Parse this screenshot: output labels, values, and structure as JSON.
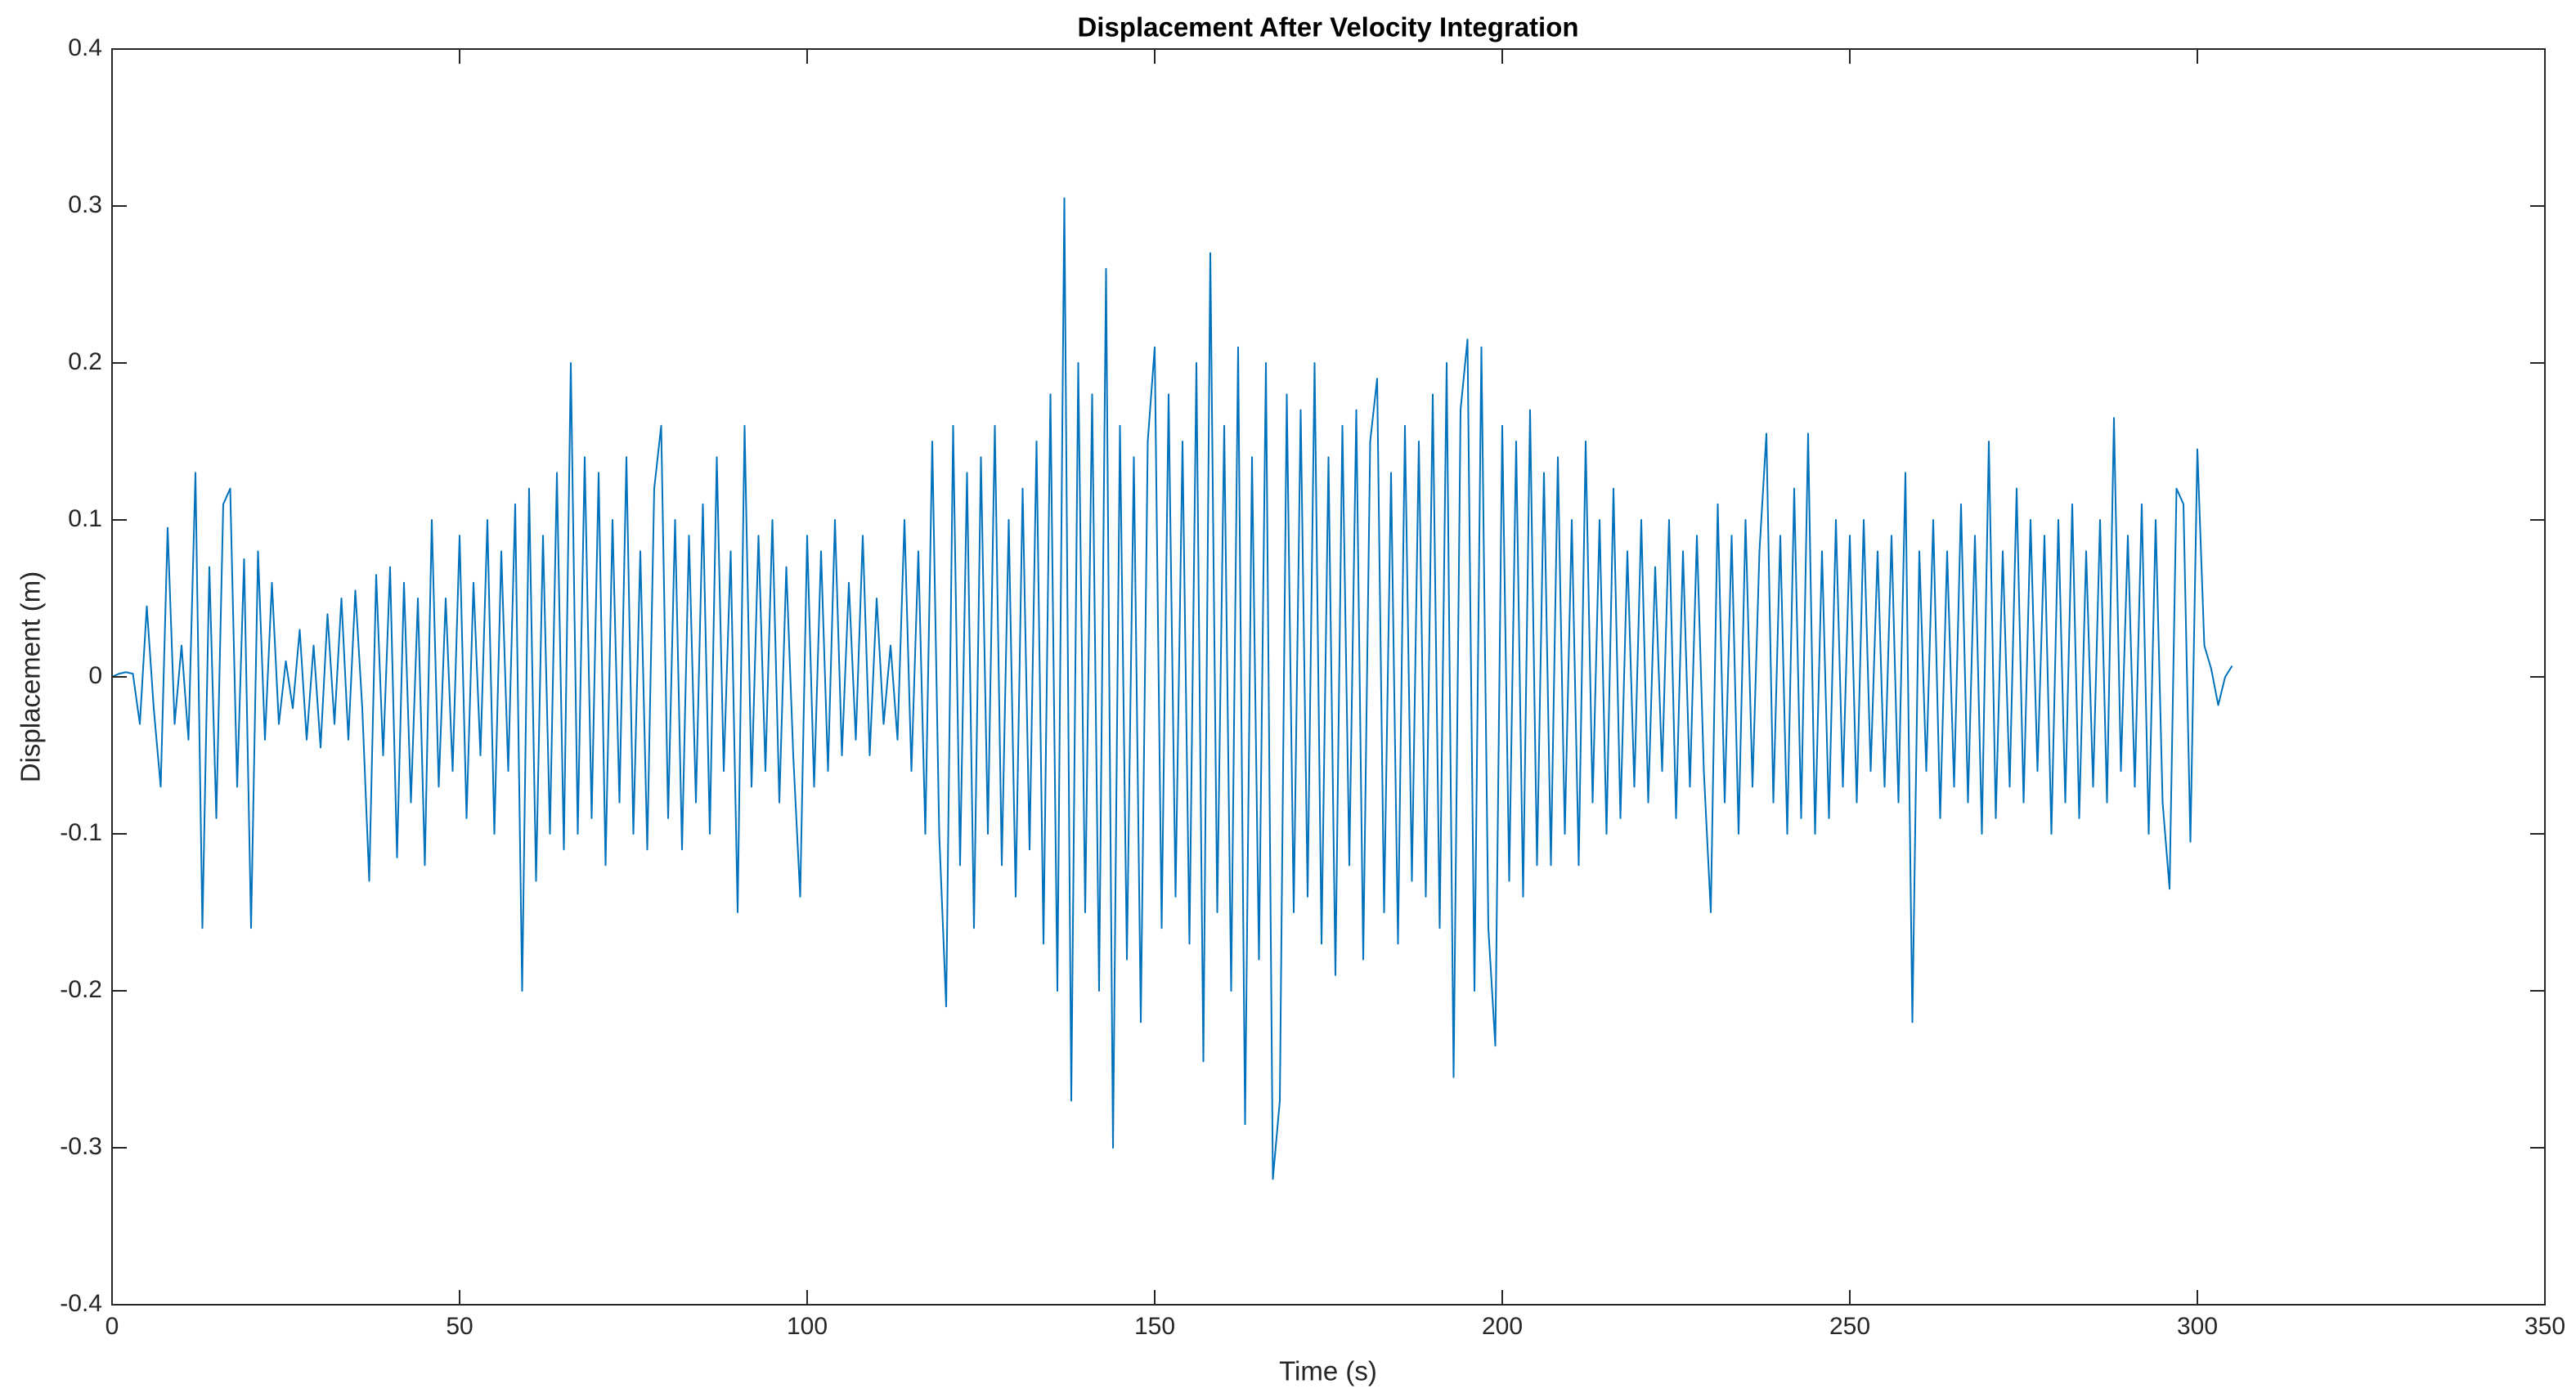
{
  "chart_data": {
    "type": "line",
    "title": "Displacement After Velocity Integration",
    "x_label": "Time (s)",
    "y_label": "Displacement (m)",
    "xlim": [
      0,
      350
    ],
    "ylim": [
      -0.4,
      0.4
    ],
    "xticks": [
      0,
      50,
      100,
      150,
      200,
      250,
      300,
      350
    ],
    "yticks": [
      -0.4,
      -0.3,
      -0.2,
      -0.1,
      0,
      0.1,
      0.2,
      0.3,
      0.4
    ],
    "grid": false,
    "x": [
      0,
      1,
      2,
      3,
      4,
      5,
      6,
      7,
      8,
      9,
      10,
      11,
      12,
      13,
      14,
      15,
      16,
      17,
      18,
      19,
      20,
      21,
      22,
      23,
      24,
      25,
      26,
      27,
      28,
      29,
      30,
      31,
      32,
      33,
      34,
      35,
      36,
      37,
      38,
      39,
      40,
      41,
      42,
      43,
      44,
      45,
      46,
      47,
      48,
      49,
      50,
      51,
      52,
      53,
      54,
      55,
      56,
      57,
      58,
      59,
      60,
      61,
      62,
      63,
      64,
      65,
      66,
      67,
      68,
      69,
      70,
      71,
      72,
      73,
      74,
      75,
      76,
      77,
      78,
      79,
      80,
      81,
      82,
      83,
      84,
      85,
      86,
      87,
      88,
      89,
      90,
      91,
      92,
      93,
      94,
      95,
      96,
      97,
      98,
      99,
      100,
      101,
      102,
      103,
      104,
      105,
      106,
      107,
      108,
      109,
      110,
      111,
      112,
      113,
      114,
      115,
      116,
      117,
      118,
      119,
      120,
      121,
      122,
      123,
      124,
      125,
      126,
      127,
      128,
      129,
      130,
      131,
      132,
      133,
      134,
      135,
      136,
      137,
      138,
      139,
      140,
      141,
      142,
      143,
      144,
      145,
      146,
      147,
      148,
      149,
      150,
      151,
      152,
      153,
      154,
      155,
      156,
      157,
      158,
      159,
      160,
      161,
      162,
      163,
      164,
      165,
      166,
      167,
      168,
      169,
      170,
      171,
      172,
      173,
      174,
      175,
      176,
      177,
      178,
      179,
      180,
      181,
      182,
      183,
      184,
      185,
      186,
      187,
      188,
      189,
      190,
      191,
      192,
      193,
      194,
      195,
      196,
      197,
      198,
      199,
      200,
      201,
      202,
      203,
      204,
      205,
      206,
      207,
      208,
      209,
      210,
      211,
      212,
      213,
      214,
      215,
      216,
      217,
      218,
      219,
      220,
      221,
      222,
      223,
      224,
      225,
      226,
      227,
      228,
      229,
      230,
      231,
      232,
      233,
      234,
      235,
      236,
      237,
      238,
      239,
      240,
      241,
      242,
      243,
      244,
      245,
      246,
      247,
      248,
      249,
      250,
      251,
      252,
      253,
      254,
      255,
      256,
      257,
      258,
      259,
      260,
      261,
      262,
      263,
      264,
      265,
      266,
      267,
      268,
      269,
      270,
      271,
      272,
      273,
      274,
      275,
      276,
      277,
      278,
      279,
      280,
      281,
      282,
      283,
      284,
      285,
      286,
      287,
      288,
      289,
      290,
      291,
      292,
      293,
      294,
      295,
      296,
      297,
      298,
      299,
      300,
      301,
      302,
      303,
      304,
      305
    ],
    "series": [
      {
        "color": "#0072bd",
        "values": [
          0,
          0.002,
          0.003,
          0.002,
          -0.03,
          0.045,
          -0.02,
          -0.07,
          0.095,
          -0.03,
          0.02,
          -0.04,
          0.13,
          -0.16,
          0.07,
          -0.09,
          0.11,
          0.12,
          -0.07,
          0.075,
          -0.16,
          0.08,
          -0.04,
          0.06,
          -0.03,
          0.01,
          -0.02,
          0.03,
          -0.04,
          0.02,
          -0.045,
          0.04,
          -0.03,
          0.05,
          -0.04,
          0.055,
          -0.02,
          -0.13,
          0.065,
          -0.05,
          0.07,
          -0.115,
          0.06,
          -0.08,
          0.05,
          -0.12,
          0.1,
          -0.07,
          0.05,
          -0.06,
          0.09,
          -0.09,
          0.06,
          -0.05,
          0.1,
          -0.1,
          0.08,
          -0.06,
          0.11,
          -0.2,
          0.12,
          -0.13,
          0.09,
          -0.1,
          0.13,
          -0.11,
          0.2,
          -0.1,
          0.14,
          -0.09,
          0.13,
          -0.12,
          0.1,
          -0.08,
          0.14,
          -0.1,
          0.08,
          -0.11,
          0.12,
          0.16,
          -0.09,
          0.1,
          -0.11,
          0.09,
          -0.08,
          0.11,
          -0.1,
          0.14,
          -0.06,
          0.08,
          -0.15,
          0.16,
          -0.07,
          0.09,
          -0.06,
          0.1,
          -0.08,
          0.07,
          -0.05,
          -0.14,
          0.09,
          -0.07,
          0.08,
          -0.06,
          0.1,
          -0.05,
          0.06,
          -0.04,
          0.09,
          -0.05,
          0.05,
          -0.03,
          0.02,
          -0.04,
          0.1,
          -0.06,
          0.08,
          -0.1,
          0.15,
          -0.1,
          -0.21,
          0.16,
          -0.12,
          0.13,
          -0.16,
          0.14,
          -0.1,
          0.16,
          -0.12,
          0.1,
          -0.14,
          0.12,
          -0.11,
          0.15,
          -0.17,
          0.18,
          -0.2,
          0.305,
          -0.27,
          0.2,
          -0.15,
          0.18,
          -0.2,
          0.26,
          -0.3,
          0.16,
          -0.18,
          0.14,
          -0.22,
          0.15,
          0.21,
          -0.16,
          0.18,
          -0.14,
          0.15,
          -0.17,
          0.2,
          -0.245,
          0.27,
          -0.15,
          0.16,
          -0.2,
          0.21,
          -0.285,
          0.14,
          -0.18,
          0.2,
          -0.32,
          -0.27,
          0.18,
          -0.15,
          0.17,
          -0.14,
          0.2,
          -0.17,
          0.14,
          -0.19,
          0.16,
          -0.12,
          0.17,
          -0.18,
          0.15,
          0.19,
          -0.15,
          0.13,
          -0.17,
          0.16,
          -0.13,
          0.15,
          -0.14,
          0.18,
          -0.16,
          0.2,
          -0.255,
          0.17,
          0.215,
          -0.2,
          0.21,
          -0.16,
          -0.235,
          0.16,
          -0.13,
          0.15,
          -0.14,
          0.17,
          -0.12,
          0.13,
          -0.12,
          0.14,
          -0.1,
          0.1,
          -0.12,
          0.15,
          -0.08,
          0.1,
          -0.1,
          0.12,
          -0.09,
          0.08,
          -0.07,
          0.1,
          -0.08,
          0.07,
          -0.06,
          0.1,
          -0.09,
          0.08,
          -0.07,
          0.09,
          -0.06,
          -0.15,
          0.11,
          -0.08,
          0.09,
          -0.1,
          0.1,
          -0.07,
          0.08,
          0.155,
          -0.08,
          0.09,
          -0.1,
          0.12,
          -0.09,
          0.155,
          -0.1,
          0.08,
          -0.09,
          0.1,
          -0.07,
          0.09,
          -0.08,
          0.1,
          -0.06,
          0.08,
          -0.07,
          0.09,
          -0.08,
          0.13,
          -0.22,
          0.08,
          -0.06,
          0.1,
          -0.09,
          0.08,
          -0.07,
          0.11,
          -0.08,
          0.09,
          -0.1,
          0.15,
          -0.09,
          0.08,
          -0.07,
          0.12,
          -0.08,
          0.1,
          -0.06,
          0.09,
          -0.1,
          0.1,
          -0.08,
          0.11,
          -0.09,
          0.08,
          -0.07,
          0.1,
          -0.08,
          0.165,
          -0.06,
          0.09,
          -0.07,
          0.11,
          -0.1,
          0.1,
          -0.08,
          -0.135,
          0.12,
          0.11,
          -0.105,
          0.145,
          0.02,
          0.005,
          -0.018,
          0.0,
          0.007
        ]
      }
    ]
  }
}
